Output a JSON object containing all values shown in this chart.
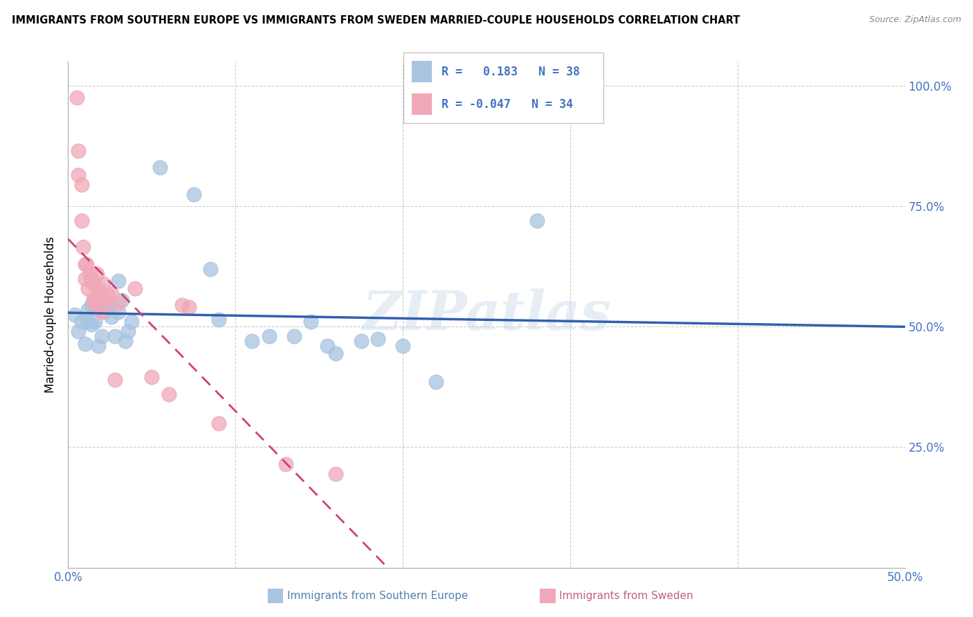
{
  "title": "IMMIGRANTS FROM SOUTHERN EUROPE VS IMMIGRANTS FROM SWEDEN MARRIED-COUPLE HOUSEHOLDS CORRELATION CHART",
  "source": "Source: ZipAtlas.com",
  "ylabel": "Married-couple Households",
  "xlim": [
    0.0,
    0.5
  ],
  "ylim": [
    0.0,
    1.05
  ],
  "blue_R": 0.183,
  "blue_N": 38,
  "pink_R": -0.047,
  "pink_N": 34,
  "blue_color": "#a8c4e0",
  "pink_color": "#f0a8b8",
  "blue_line_color": "#3060b0",
  "pink_line_color": "#d04070",
  "legend_text_color": "#4472c4",
  "watermark": "ZIPatlas",
  "blue_scatter_x": [
    0.004,
    0.006,
    0.008,
    0.01,
    0.012,
    0.012,
    0.014,
    0.014,
    0.016,
    0.018,
    0.018,
    0.02,
    0.02,
    0.022,
    0.024,
    0.026,
    0.028,
    0.03,
    0.03,
    0.032,
    0.034,
    0.036,
    0.038,
    0.055,
    0.075,
    0.085,
    0.09,
    0.11,
    0.12,
    0.135,
    0.145,
    0.155,
    0.16,
    0.175,
    0.185,
    0.2,
    0.22,
    0.28
  ],
  "blue_scatter_y": [
    0.525,
    0.49,
    0.51,
    0.465,
    0.535,
    0.51,
    0.545,
    0.505,
    0.51,
    0.54,
    0.46,
    0.545,
    0.48,
    0.53,
    0.55,
    0.52,
    0.48,
    0.595,
    0.53,
    0.555,
    0.47,
    0.49,
    0.51,
    0.83,
    0.775,
    0.62,
    0.515,
    0.47,
    0.48,
    0.48,
    0.51,
    0.46,
    0.445,
    0.47,
    0.475,
    0.46,
    0.385,
    0.72
  ],
  "pink_scatter_x": [
    0.005,
    0.006,
    0.006,
    0.008,
    0.008,
    0.009,
    0.01,
    0.01,
    0.011,
    0.012,
    0.013,
    0.014,
    0.015,
    0.015,
    0.016,
    0.016,
    0.017,
    0.018,
    0.019,
    0.02,
    0.021,
    0.022,
    0.024,
    0.026,
    0.028,
    0.03,
    0.04,
    0.05,
    0.06,
    0.068,
    0.072,
    0.09,
    0.13,
    0.16
  ],
  "pink_scatter_y": [
    0.975,
    0.865,
    0.815,
    0.795,
    0.72,
    0.665,
    0.63,
    0.6,
    0.63,
    0.58,
    0.61,
    0.6,
    0.59,
    0.56,
    0.555,
    0.545,
    0.61,
    0.58,
    0.57,
    0.53,
    0.59,
    0.55,
    0.565,
    0.57,
    0.39,
    0.55,
    0.58,
    0.395,
    0.36,
    0.545,
    0.54,
    0.3,
    0.215,
    0.195
  ],
  "background_color": "#ffffff",
  "grid_color": "#cccccc"
}
